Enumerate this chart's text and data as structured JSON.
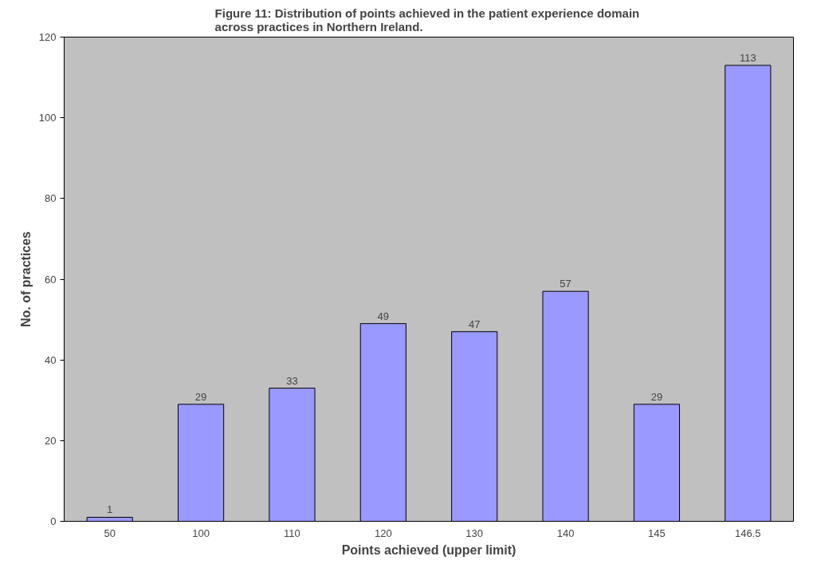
{
  "chart_data": {
    "type": "bar",
    "title": "Figure 11:  Distribution of points achieved in the patient experience domain\nacross practices in Northern Ireland.",
    "xlabel": "Points achieved (upper limit)",
    "ylabel": "No. of practices",
    "categories": [
      "50",
      "100",
      "110",
      "120",
      "130",
      "140",
      "145",
      "146.5"
    ],
    "values": [
      1,
      29,
      33,
      49,
      47,
      57,
      29,
      113
    ],
    "color": "#9999ff",
    "ylim": [
      0,
      120
    ],
    "yticks": [
      0,
      20,
      40,
      60,
      80,
      100,
      120
    ],
    "grid": false,
    "data_labels": true
  }
}
